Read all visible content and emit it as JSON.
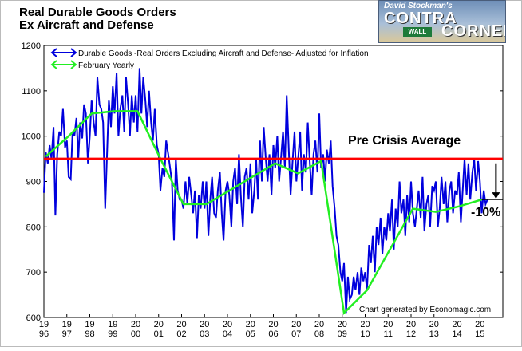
{
  "header": {
    "title_line1": "Real Durable Goods Orders",
    "title_line2": "Ex Aircraft and Defense"
  },
  "logo": {
    "line1": "David Stockman's",
    "line2": "CONTRA",
    "line3": "CORNER",
    "sign": "WALL"
  },
  "colors": {
    "monthly": "#0000dd",
    "yearly": "#22ee22",
    "average": "#ff0000",
    "arrow": "#000000"
  },
  "chart_data": {
    "type": "line",
    "title": "Real Durable Goods Orders Ex Aircraft and Defense",
    "xlabel": "",
    "ylabel": "",
    "xlim": [
      1996.0,
      2016.0
    ],
    "ylim": [
      600,
      1200
    ],
    "yticks": [
      600,
      700,
      800,
      900,
      1000,
      1100,
      1200
    ],
    "xticks": [
      {
        "x": 1996,
        "top": "19",
        "bottom": "96"
      },
      {
        "x": 1997,
        "top": "19",
        "bottom": "97"
      },
      {
        "x": 1998,
        "top": "19",
        "bottom": "98"
      },
      {
        "x": 1999,
        "top": "19",
        "bottom": "99"
      },
      {
        "x": 2000,
        "top": "20",
        "bottom": "00"
      },
      {
        "x": 2001,
        "top": "20",
        "bottom": "01"
      },
      {
        "x": 2002,
        "top": "20",
        "bottom": "02"
      },
      {
        "x": 2003,
        "top": "20",
        "bottom": "03"
      },
      {
        "x": 2004,
        "top": "20",
        "bottom": "04"
      },
      {
        "x": 2005,
        "top": "20",
        "bottom": "05"
      },
      {
        "x": 2006,
        "top": "20",
        "bottom": "06"
      },
      {
        "x": 2007,
        "top": "20",
        "bottom": "07"
      },
      {
        "x": 2008,
        "top": "20",
        "bottom": "08"
      },
      {
        "x": 2009,
        "top": "20",
        "bottom": "09"
      },
      {
        "x": 2010,
        "top": "20",
        "bottom": "10"
      },
      {
        "x": 2011,
        "top": "20",
        "bottom": "11"
      },
      {
        "x": 2012,
        "top": "20",
        "bottom": "12"
      },
      {
        "x": 2013,
        "top": "20",
        "bottom": "13"
      },
      {
        "x": 2014,
        "top": "20",
        "bottom": "14"
      },
      {
        "x": 2015,
        "top": "20",
        "bottom": "15"
      }
    ],
    "grid": false,
    "legend_position": "top-left",
    "series": [
      {
        "name": "Durable Goods -Real Orders Excluding Aircraft and Defense- Adjusted for Inflation",
        "color": "#0000dd",
        "points": [
          [
            1996.0,
            875
          ],
          [
            1996.08,
            965
          ],
          [
            1996.17,
            940
          ],
          [
            1996.25,
            980
          ],
          [
            1996.33,
            950
          ],
          [
            1996.42,
            1020
          ],
          [
            1996.5,
            825
          ],
          [
            1996.58,
            960
          ],
          [
            1996.67,
            1010
          ],
          [
            1996.75,
            1000
          ],
          [
            1996.83,
            1060
          ],
          [
            1996.92,
            975
          ],
          [
            1997.0,
            990
          ],
          [
            1997.08,
            910
          ],
          [
            1997.17,
            905
          ],
          [
            1997.25,
            1010
          ],
          [
            1997.33,
            1000
          ],
          [
            1997.42,
            1040
          ],
          [
            1997.5,
            950
          ],
          [
            1997.58,
            1030
          ],
          [
            1997.67,
            995
          ],
          [
            1997.75,
            1070
          ],
          [
            1997.83,
            1050
          ],
          [
            1997.92,
            940
          ],
          [
            1998.0,
            1000
          ],
          [
            1998.08,
            1080
          ],
          [
            1998.17,
            1030
          ],
          [
            1998.25,
            1000
          ],
          [
            1998.33,
            1130
          ],
          [
            1998.42,
            1070
          ],
          [
            1998.5,
            1060
          ],
          [
            1998.58,
            1030
          ],
          [
            1998.67,
            840
          ],
          [
            1998.75,
            960
          ],
          [
            1998.83,
            1080
          ],
          [
            1998.92,
            1020
          ],
          [
            1999.0,
            1110
          ],
          [
            1999.08,
            1050
          ],
          [
            1999.17,
            1140
          ],
          [
            1999.25,
            1000
          ],
          [
            1999.33,
            1060
          ],
          [
            1999.42,
            1090
          ],
          [
            1999.5,
            1010
          ],
          [
            1999.58,
            1130
          ],
          [
            1999.67,
            1070
          ],
          [
            1999.75,
            1000
          ],
          [
            1999.83,
            1090
          ],
          [
            1999.92,
            1030
          ],
          [
            2000.0,
            1090
          ],
          [
            2000.08,
            1010
          ],
          [
            2000.17,
            1150
          ],
          [
            2000.25,
            1050
          ],
          [
            2000.33,
            1130
          ],
          [
            2000.42,
            1080
          ],
          [
            2000.5,
            1020
          ],
          [
            2000.58,
            1100
          ],
          [
            2000.67,
            1030
          ],
          [
            2000.75,
            990
          ],
          [
            2000.83,
            1060
          ],
          [
            2000.92,
            980
          ],
          [
            2001.0,
            960
          ],
          [
            2001.08,
            880
          ],
          [
            2001.17,
            930
          ],
          [
            2001.25,
            910
          ],
          [
            2001.33,
            990
          ],
          [
            2001.42,
            960
          ],
          [
            2001.5,
            930
          ],
          [
            2001.58,
            900
          ],
          [
            2001.67,
            770
          ],
          [
            2001.75,
            950
          ],
          [
            2001.83,
            880
          ],
          [
            2001.92,
            860
          ],
          [
            2002.0,
            860
          ],
          [
            2002.08,
            840
          ],
          [
            2002.17,
            900
          ],
          [
            2002.25,
            850
          ],
          [
            2002.33,
            910
          ],
          [
            2002.42,
            870
          ],
          [
            2002.5,
            830
          ],
          [
            2002.58,
            880
          ],
          [
            2002.67,
            775
          ],
          [
            2002.75,
            870
          ],
          [
            2002.83,
            840
          ],
          [
            2002.92,
            900
          ],
          [
            2003.0,
            840
          ],
          [
            2003.08,
            900
          ],
          [
            2003.17,
            780
          ],
          [
            2003.25,
            860
          ],
          [
            2003.33,
            910
          ],
          [
            2003.42,
            830
          ],
          [
            2003.5,
            820
          ],
          [
            2003.58,
            880
          ],
          [
            2003.67,
            920
          ],
          [
            2003.75,
            830
          ],
          [
            2003.83,
            770
          ],
          [
            2003.92,
            880
          ],
          [
            2004.0,
            900
          ],
          [
            2004.08,
            870
          ],
          [
            2004.17,
            800
          ],
          [
            2004.25,
            900
          ],
          [
            2004.33,
            930
          ],
          [
            2004.42,
            850
          ],
          [
            2004.5,
            960
          ],
          [
            2004.58,
            870
          ],
          [
            2004.67,
            800
          ],
          [
            2004.75,
            910
          ],
          [
            2004.83,
            930
          ],
          [
            2004.92,
            860
          ],
          [
            2005.0,
            940
          ],
          [
            2005.08,
            830
          ],
          [
            2005.17,
            880
          ],
          [
            2005.25,
            950
          ],
          [
            2005.33,
            860
          ],
          [
            2005.42,
            990
          ],
          [
            2005.5,
            900
          ],
          [
            2005.58,
            1020
          ],
          [
            2005.67,
            950
          ],
          [
            2005.75,
            900
          ],
          [
            2005.83,
            960
          ],
          [
            2005.92,
            870
          ],
          [
            2006.0,
            980
          ],
          [
            2006.08,
            930
          ],
          [
            2006.17,
            1000
          ],
          [
            2006.25,
            900
          ],
          [
            2006.33,
            950
          ],
          [
            2006.42,
            1010
          ],
          [
            2006.5,
            930
          ],
          [
            2006.58,
            1090
          ],
          [
            2006.67,
            970
          ],
          [
            2006.75,
            870
          ],
          [
            2006.83,
            940
          ],
          [
            2006.92,
            1010
          ],
          [
            2007.0,
            900
          ],
          [
            2007.08,
            950
          ],
          [
            2007.17,
            1010
          ],
          [
            2007.25,
            880
          ],
          [
            2007.33,
            960
          ],
          [
            2007.42,
            920
          ],
          [
            2007.5,
            1030
          ],
          [
            2007.58,
            950
          ],
          [
            2007.67,
            870
          ],
          [
            2007.75,
            960
          ],
          [
            2007.83,
            990
          ],
          [
            2007.92,
            920
          ],
          [
            2008.0,
            1050
          ],
          [
            2008.08,
            930
          ],
          [
            2008.17,
            960
          ],
          [
            2008.25,
            900
          ],
          [
            2008.33,
            970
          ],
          [
            2008.42,
            940
          ],
          [
            2008.5,
            990
          ],
          [
            2008.58,
            890
          ],
          [
            2008.67,
            840
          ],
          [
            2008.75,
            780
          ],
          [
            2008.83,
            760
          ],
          [
            2008.92,
            700
          ],
          [
            2009.0,
            680
          ],
          [
            2009.08,
            720
          ],
          [
            2009.17,
            610
          ],
          [
            2009.25,
            690
          ],
          [
            2009.33,
            640
          ],
          [
            2009.42,
            650
          ],
          [
            2009.5,
            690
          ],
          [
            2009.58,
            660
          ],
          [
            2009.67,
            700
          ],
          [
            2009.75,
            650
          ],
          [
            2009.83,
            710
          ],
          [
            2009.92,
            680
          ],
          [
            2010.0,
            700
          ],
          [
            2010.08,
            660
          ],
          [
            2010.17,
            760
          ],
          [
            2010.25,
            720
          ],
          [
            2010.33,
            780
          ],
          [
            2010.42,
            700
          ],
          [
            2010.5,
            800
          ],
          [
            2010.58,
            760
          ],
          [
            2010.67,
            820
          ],
          [
            2010.75,
            740
          ],
          [
            2010.83,
            800
          ],
          [
            2010.92,
            770
          ],
          [
            2011.0,
            830
          ],
          [
            2011.08,
            790
          ],
          [
            2011.17,
            860
          ],
          [
            2011.25,
            750
          ],
          [
            2011.33,
            840
          ],
          [
            2011.42,
            800
          ],
          [
            2011.5,
            900
          ],
          [
            2011.58,
            830
          ],
          [
            2011.67,
            860
          ],
          [
            2011.75,
            780
          ],
          [
            2011.83,
            870
          ],
          [
            2011.92,
            810
          ],
          [
            2012.0,
            900
          ],
          [
            2012.08,
            830
          ],
          [
            2012.17,
            800
          ],
          [
            2012.25,
            840
          ],
          [
            2012.33,
            880
          ],
          [
            2012.42,
            820
          ],
          [
            2012.5,
            910
          ],
          [
            2012.58,
            790
          ],
          [
            2012.67,
            850
          ],
          [
            2012.75,
            870
          ],
          [
            2012.83,
            800
          ],
          [
            2012.92,
            890
          ],
          [
            2013.0,
            880
          ],
          [
            2013.08,
            900
          ],
          [
            2013.17,
            800
          ],
          [
            2013.25,
            840
          ],
          [
            2013.33,
            910
          ],
          [
            2013.42,
            850
          ],
          [
            2013.5,
            900
          ],
          [
            2013.58,
            810
          ],
          [
            2013.67,
            880
          ],
          [
            2013.75,
            900
          ],
          [
            2013.83,
            830
          ],
          [
            2013.92,
            880
          ],
          [
            2014.0,
            870
          ],
          [
            2014.08,
            920
          ],
          [
            2014.17,
            810
          ],
          [
            2014.25,
            880
          ],
          [
            2014.33,
            950
          ],
          [
            2014.42,
            870
          ],
          [
            2014.5,
            940
          ],
          [
            2014.58,
            860
          ],
          [
            2014.67,
            920
          ],
          [
            2014.75,
            950
          ],
          [
            2014.83,
            880
          ],
          [
            2014.92,
            945
          ],
          [
            2015.0,
            900
          ],
          [
            2015.08,
            830
          ],
          [
            2015.17,
            880
          ],
          [
            2015.25,
            850
          ],
          [
            2015.33,
            860
          ]
        ]
      },
      {
        "name": "February Yearly",
        "color": "#22ee22",
        "points": [
          [
            1996.08,
            955
          ],
          [
            1997.08,
            1000
          ],
          [
            1998.08,
            1050
          ],
          [
            1999.08,
            1055
          ],
          [
            2000.08,
            1055
          ],
          [
            2001.08,
            950
          ],
          [
            2002.08,
            850
          ],
          [
            2003.08,
            850
          ],
          [
            2004.08,
            880
          ],
          [
            2005.08,
            910
          ],
          [
            2006.08,
            940
          ],
          [
            2007.08,
            918
          ],
          [
            2008.08,
            945
          ],
          [
            2009.08,
            610
          ],
          [
            2010.08,
            660
          ],
          [
            2011.08,
            750
          ],
          [
            2012.08,
            840
          ],
          [
            2013.08,
            833
          ],
          [
            2014.08,
            845
          ],
          [
            2015.08,
            860
          ]
        ]
      }
    ],
    "reference_line": {
      "y": 950,
      "label": "Pre Crisis Average",
      "color": "#ff0000"
    },
    "current_level_line": {
      "y": 860,
      "x_from": 2015.08,
      "x_to": 2016.0
    },
    "arrow": {
      "x": 2015.7,
      "from": 940,
      "to": 862,
      "label": "-10%"
    },
    "credit": "Chart generated by Economagic.com"
  }
}
